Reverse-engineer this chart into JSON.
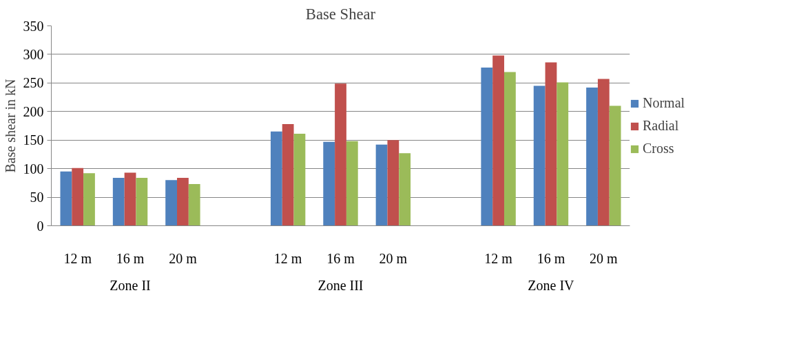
{
  "chart_data": {
    "type": "bar",
    "title": "Base Shear",
    "ylabel": "Base shear in kN",
    "categories": [
      "12 m",
      "16 m",
      "20 m",
      null,
      "12 m",
      "16 m",
      "20 m",
      null,
      "12 m",
      "16 m",
      "20 m"
    ],
    "series": [
      {
        "name": "Normal",
        "color": "#4f81bd",
        "values": [
          95,
          84,
          80,
          null,
          165,
          147,
          142,
          null,
          277,
          245,
          242
        ]
      },
      {
        "name": "Radial",
        "color": "#c0504d",
        "values": [
          101,
          93,
          84,
          null,
          178,
          249,
          150,
          null,
          298,
          286,
          257
        ]
      },
      {
        "name": "Cross",
        "color": "#9bbb59",
        "values": [
          92,
          84,
          73,
          null,
          161,
          148,
          127,
          null,
          269,
          251,
          210
        ]
      }
    ],
    "annotations": [
      "Zone II",
      "Zone III",
      "Zone IV"
    ],
    "ylim": [
      0,
      350
    ],
    "yticks": [
      0,
      50,
      100,
      150,
      200,
      250,
      300,
      350
    ],
    "grid": "y",
    "legend": "right"
  }
}
